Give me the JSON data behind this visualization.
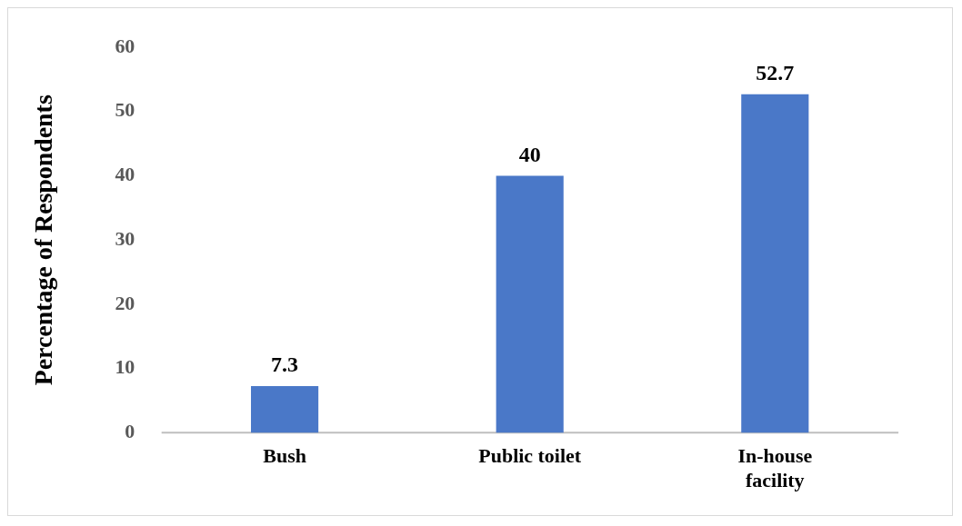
{
  "chart_data": {
    "type": "bar",
    "ylabel": "Percentage of Respondents",
    "categories": [
      "Bush",
      "Public toilet",
      "In-house facility"
    ],
    "values": [
      7.3,
      40,
      52.7
    ],
    "color": "#4a78c8",
    "ylim": [
      0,
      60
    ],
    "yticks": [
      0,
      10,
      20,
      30,
      40,
      50,
      60
    ],
    "grid": false,
    "legend": false,
    "data_labels": true
  }
}
